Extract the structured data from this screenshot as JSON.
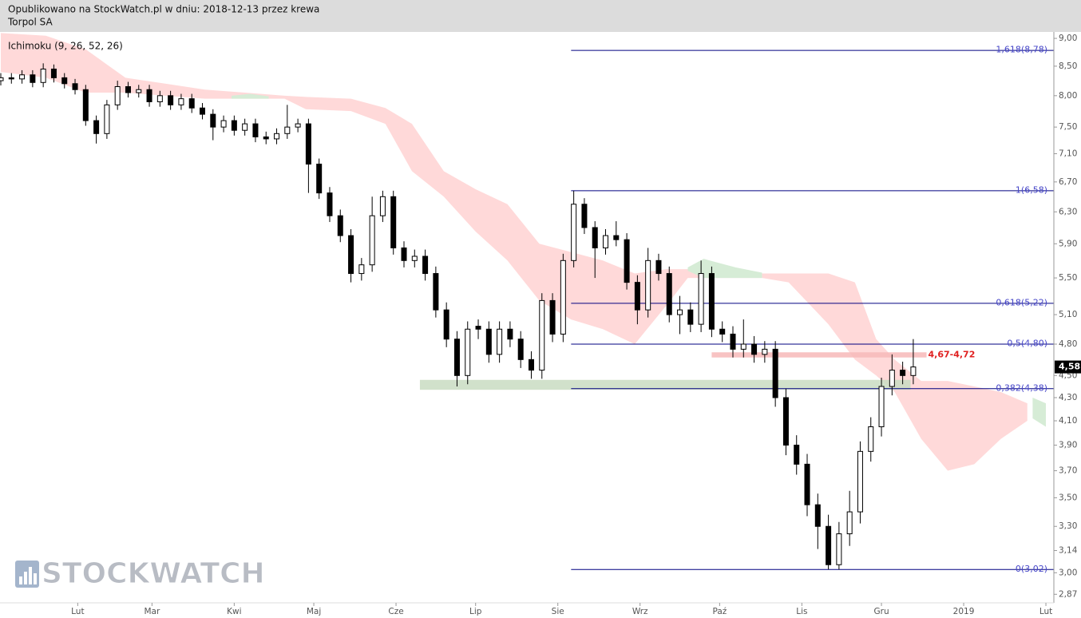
{
  "header": {
    "line1": "Opublikowano na StockWatch.pl w dniu: 2018-12-13 przez krewa",
    "line2": "Torpol SA"
  },
  "chart_data": {
    "type": "candlestick",
    "indicator": "Ichimoku (9, 26, 52, 26)",
    "watermark": "STOCKWATCH",
    "yscale": "log",
    "xlim": [
      2.7,
      400
    ],
    "ylim": [
      2.82,
      9.12
    ],
    "yticks": [
      {
        "value": 9,
        "label": "9,00"
      },
      {
        "value": 8.5,
        "label": "8,50"
      },
      {
        "value": 8,
        "label": "8,00"
      },
      {
        "value": 7.5,
        "label": "7,50"
      },
      {
        "value": 7.1,
        "label": "7,10"
      },
      {
        "value": 6.7,
        "label": "6,70"
      },
      {
        "value": 6.3,
        "label": "6,30"
      },
      {
        "value": 5.9,
        "label": "5,90"
      },
      {
        "value": 5.5,
        "label": "5,50"
      },
      {
        "value": 5.1,
        "label": "5,10"
      },
      {
        "value": 4.8,
        "label": "4,80"
      },
      {
        "value": 4.5,
        "label": "4,50"
      },
      {
        "value": 4.3,
        "label": "4,30"
      },
      {
        "value": 4.1,
        "label": "4,10"
      },
      {
        "value": 3.9,
        "label": "3,90"
      },
      {
        "value": 3.7,
        "label": "3,70"
      },
      {
        "value": 3.5,
        "label": "3,50"
      },
      {
        "value": 3.3,
        "label": "3,30"
      },
      {
        "value": 3.14,
        "label": "3,14"
      },
      {
        "value": 3,
        "label": "3,00"
      },
      {
        "value": 2.87,
        "label": "2,87"
      }
    ],
    "xticks": [
      {
        "value": 32,
        "label": "Lut"
      },
      {
        "value": 60,
        "label": "Mar"
      },
      {
        "value": 91,
        "label": "Kwi"
      },
      {
        "value": 121,
        "label": "Maj"
      },
      {
        "value": 152,
        "label": "Cze"
      },
      {
        "value": 182,
        "label": "Lip"
      },
      {
        "value": 213,
        "label": "Sie"
      },
      {
        "value": 244,
        "label": "Wrz"
      },
      {
        "value": 274,
        "label": "Paź"
      },
      {
        "value": 305,
        "label": "Lis"
      },
      {
        "value": 335,
        "label": "Gru"
      },
      {
        "value": 366,
        "label": "2019"
      },
      {
        "value": 397,
        "label": "Lut"
      }
    ],
    "up_color": "#ffffff",
    "down_color": "#000000",
    "x": [
      3,
      7,
      11,
      15,
      19,
      23,
      27,
      31,
      35,
      39,
      43,
      47,
      51,
      55,
      59,
      63,
      67,
      71,
      75,
      79,
      83,
      87,
      91,
      95,
      99,
      103,
      107,
      111,
      115,
      119,
      123,
      127,
      131,
      135,
      139,
      143,
      147,
      151,
      155,
      159,
      163,
      167,
      171,
      175,
      179,
      183,
      187,
      191,
      195,
      199,
      203,
      207,
      211,
      215,
      219,
      223,
      227,
      231,
      235,
      239,
      243,
      247,
      251,
      255,
      259,
      263,
      267,
      271,
      275,
      279,
      283,
      287,
      291,
      295,
      299,
      303,
      307,
      311,
      315,
      319,
      323,
      327,
      331,
      335,
      339,
      343,
      347
    ],
    "open": [
      8.25,
      8.3,
      8.28,
      8.35,
      8.22,
      8.45,
      8.3,
      8.2,
      8.1,
      7.6,
      7.4,
      7.85,
      8.15,
      8.05,
      8.1,
      7.9,
      8.0,
      7.85,
      7.95,
      7.8,
      7.7,
      7.5,
      7.6,
      7.45,
      7.55,
      7.35,
      7.32,
      7.4,
      7.5,
      7.55,
      6.95,
      6.55,
      6.25,
      6.0,
      5.55,
      5.65,
      6.25,
      6.5,
      5.85,
      5.7,
      5.75,
      5.55,
      5.15,
      4.85,
      4.5,
      4.98,
      4.95,
      4.7,
      4.95,
      4.85,
      4.65,
      4.55,
      5.25,
      4.9,
      5.7,
      6.4,
      6.1,
      5.85,
      6.0,
      5.95,
      5.45,
      5.15,
      5.7,
      5.55,
      5.1,
      5.15,
      5.0,
      5.55,
      4.95,
      4.9,
      4.75,
      4.8,
      4.7,
      4.75,
      4.3,
      3.9,
      3.75,
      3.45,
      3.3,
      3.05,
      3.25,
      3.4,
      3.85,
      4.05,
      4.4,
      4.55,
      4.5
    ],
    "high": [
      8.38,
      8.38,
      8.43,
      8.43,
      8.55,
      8.53,
      8.38,
      8.28,
      8.18,
      7.68,
      7.93,
      8.25,
      8.23,
      8.18,
      8.18,
      8.08,
      8.08,
      8.03,
      8.03,
      7.88,
      7.78,
      7.68,
      7.68,
      7.63,
      7.63,
      7.43,
      7.48,
      7.85,
      7.63,
      7.63,
      7.03,
      6.63,
      6.33,
      6.08,
      5.73,
      6.5,
      6.58,
      6.58,
      5.93,
      5.83,
      5.83,
      5.63,
      5.23,
      4.93,
      5.03,
      5.05,
      5.03,
      5.03,
      5.03,
      4.93,
      4.73,
      5.33,
      5.33,
      5.78,
      6.58,
      6.48,
      6.18,
      6.08,
      6.18,
      6.03,
      5.53,
      5.85,
      5.78,
      5.63,
      5.3,
      5.23,
      5.7,
      5.63,
      5.03,
      4.98,
      5.05,
      4.88,
      4.83,
      4.83,
      4.38,
      3.98,
      3.83,
      3.53,
      3.38,
      3.33,
      3.55,
      3.93,
      4.13,
      4.48,
      4.7,
      4.63,
      4.85
    ],
    "low": [
      8.17,
      8.2,
      8.2,
      8.14,
      8.14,
      8.22,
      8.12,
      8.02,
      7.52,
      7.25,
      7.32,
      7.77,
      7.97,
      7.97,
      7.82,
      7.82,
      7.77,
      7.77,
      7.72,
      7.62,
      7.3,
      7.42,
      7.37,
      7.37,
      7.27,
      7.24,
      7.24,
      7.32,
      7.42,
      6.55,
      6.47,
      6.17,
      5.92,
      5.45,
      5.47,
      5.57,
      6.17,
      5.77,
      5.62,
      5.62,
      5.47,
      5.07,
      4.77,
      4.4,
      4.42,
      4.85,
      4.62,
      4.62,
      4.77,
      4.57,
      4.47,
      4.47,
      4.82,
      4.82,
      5.62,
      6.02,
      5.5,
      5.77,
      5.87,
      5.37,
      5.0,
      5.07,
      5.47,
      5.02,
      4.9,
      4.92,
      4.92,
      4.87,
      4.82,
      4.67,
      4.67,
      4.62,
      4.62,
      4.22,
      3.82,
      3.67,
      3.37,
      3.15,
      3.02,
      3.02,
      3.17,
      3.32,
      3.77,
      3.97,
      4.32,
      4.42,
      4.42
    ],
    "close": [
      8.3,
      8.28,
      8.35,
      8.22,
      8.45,
      8.3,
      8.2,
      8.1,
      7.6,
      7.4,
      7.85,
      8.15,
      8.05,
      8.1,
      7.9,
      8.0,
      7.85,
      7.95,
      7.8,
      7.7,
      7.5,
      7.6,
      7.45,
      7.55,
      7.35,
      7.32,
      7.4,
      7.5,
      7.55,
      6.95,
      6.55,
      6.25,
      6.0,
      5.55,
      5.65,
      6.25,
      6.5,
      5.85,
      5.7,
      5.75,
      5.55,
      5.15,
      4.85,
      4.5,
      4.95,
      4.95,
      4.7,
      4.95,
      4.85,
      4.65,
      4.55,
      5.25,
      4.9,
      5.7,
      6.4,
      6.1,
      5.85,
      6.0,
      5.95,
      5.45,
      5.15,
      5.7,
      5.55,
      5.1,
      5.15,
      5.0,
      5.55,
      4.95,
      4.9,
      4.75,
      4.8,
      4.7,
      4.75,
      4.3,
      3.9,
      3.75,
      3.45,
      3.3,
      3.05,
      3.25,
      3.4,
      3.85,
      4.05,
      4.4,
      4.55,
      4.5,
      4.58
    ],
    "cloud": [
      {
        "color": "#ffd9d9",
        "x": [
          3,
          20,
          35,
          50,
          65,
          80,
          95,
          110,
          118,
          135,
          148,
          158,
          170,
          182,
          194,
          206,
          218,
          230,
          242,
          254,
          262,
          290,
          300,
          315,
          325,
          333,
          340,
          350,
          360,
          370,
          380,
          390
        ],
        "upper": [
          9.1,
          9.05,
          8.8,
          8.3,
          8.2,
          8.1,
          8.05,
          8.0,
          7.98,
          7.95,
          7.8,
          7.55,
          6.85,
          6.6,
          6.4,
          5.9,
          5.8,
          5.7,
          5.55,
          5.6,
          5.6,
          5.55,
          5.55,
          5.55,
          5.45,
          4.85,
          4.65,
          4.45,
          4.45,
          4.4,
          4.35,
          4.25
        ],
        "lower": [
          8.4,
          8.3,
          8.05,
          8.05,
          8.0,
          7.95,
          7.95,
          7.95,
          7.78,
          7.75,
          7.55,
          6.85,
          6.5,
          6.05,
          5.7,
          5.25,
          5.05,
          4.95,
          4.8,
          5.2,
          5.5,
          5.5,
          5.45,
          5.0,
          4.65,
          4.5,
          4.35,
          3.95,
          3.7,
          3.75,
          3.95,
          4.1
        ]
      },
      {
        "color": "#d6ecd6",
        "x": [
          90,
          97,
          104,
          110,
          262,
          268,
          280,
          290,
          300,
          392,
          397
        ],
        "upper": [
          8.0,
          8.03,
          7.99,
          null,
          5.62,
          5.72,
          5.62,
          5.56,
          null,
          4.3,
          4.25
        ],
        "lower": [
          7.95,
          7.95,
          7.95,
          null,
          5.58,
          5.5,
          5.5,
          5.5,
          null,
          4.12,
          4.05
        ]
      }
    ],
    "fib": {
      "start": 218,
      "color": "#000080",
      "levels": [
        {
          "value": 8.78,
          "label": "1,618(8,78)"
        },
        {
          "value": 6.58,
          "label": "1(6,58)"
        },
        {
          "value": 5.22,
          "label": "0,618(5,22)"
        },
        {
          "value": 4.8,
          "label": "0,5(4,80)"
        },
        {
          "value": 4.38,
          "label": "0,382(4,38)"
        },
        {
          "value": 3.02,
          "label": "0(3,02)"
        }
      ]
    },
    "zones": [
      {
        "start": 161,
        "end": 346,
        "low": 4.37,
        "high": 4.46,
        "color": "#c9dcc2"
      },
      {
        "start": 271,
        "end": 352,
        "low": 4.67,
        "high": 4.72,
        "color": "#f7b9b9",
        "label": "4,67-4,72"
      }
    ],
    "last_price": {
      "value": 4.58,
      "label": "4,58"
    }
  }
}
